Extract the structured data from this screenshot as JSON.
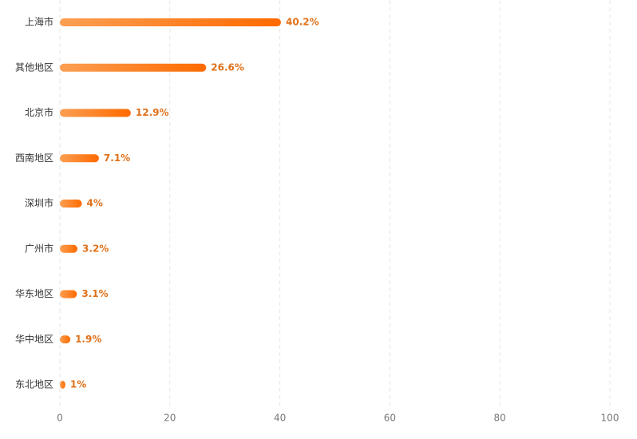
{
  "chart_data": {
    "type": "hbar",
    "categories": [
      "上海市",
      "其他地区",
      "北京市",
      "西南地区",
      "深圳市",
      "广州市",
      "华东地区",
      "华中地区",
      "东北地区"
    ],
    "values": [
      40.2,
      26.6,
      12.9,
      7.1,
      4,
      3.2,
      3.1,
      1.9,
      1
    ],
    "value_labels": [
      "40.2%",
      "26.6%",
      "12.9%",
      "7.1%",
      "4%",
      "3.2%",
      "3.1%",
      "1.9%",
      "1%"
    ],
    "color": [
      "#fb9f52",
      "#ff6a00"
    ],
    "xlim": [
      0,
      100
    ],
    "xticks": [
      0,
      20,
      40,
      60,
      80,
      100
    ],
    "grid": true
  }
}
